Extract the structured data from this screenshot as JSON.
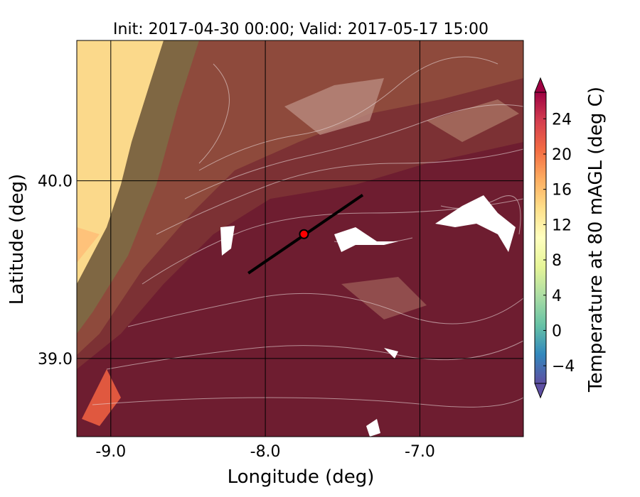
{
  "chart_data": {
    "type": "map",
    "title": "Init: 2017-04-30 00:00; Valid: 2017-05-17 15:00",
    "xlabel": "Longitude (deg)",
    "ylabel": "Latitude (deg)",
    "xlim": [
      -9.22,
      -6.33
    ],
    "ylim": [
      38.56,
      40.79
    ],
    "xticks": [
      {
        "value": -9,
        "label": "-9.0"
      },
      {
        "value": -8,
        "label": "-8.0"
      },
      {
        "value": -7,
        "label": "-7.0"
      }
    ],
    "yticks": [
      {
        "value": 39,
        "label": "39.0"
      },
      {
        "value": 40,
        "label": "40.0"
      }
    ],
    "grid": true,
    "colorbar": {
      "label": "Temperature at 80 mAGL (deg C)",
      "lim": [
        -6,
        27
      ],
      "ticks": [
        {
          "value": -4,
          "label": "−4"
        },
        0,
        4,
        8,
        12,
        16,
        20,
        24
      ],
      "colormap": [
        "#5e4fa2",
        "#3288bd",
        "#66c2a5",
        "#abdda4",
        "#e6f598",
        "#ffffbf",
        "#fee08b",
        "#fdae61",
        "#f46d43",
        "#d53e4f",
        "#9e0142"
      ]
    },
    "marker": {
      "lon": -7.75,
      "lat": 39.7,
      "color": "#ff0000"
    },
    "transect": {
      "lon": [
        -8.11,
        -7.37
      ],
      "lat": [
        39.48,
        39.92
      ],
      "color": "#000000"
    }
  }
}
